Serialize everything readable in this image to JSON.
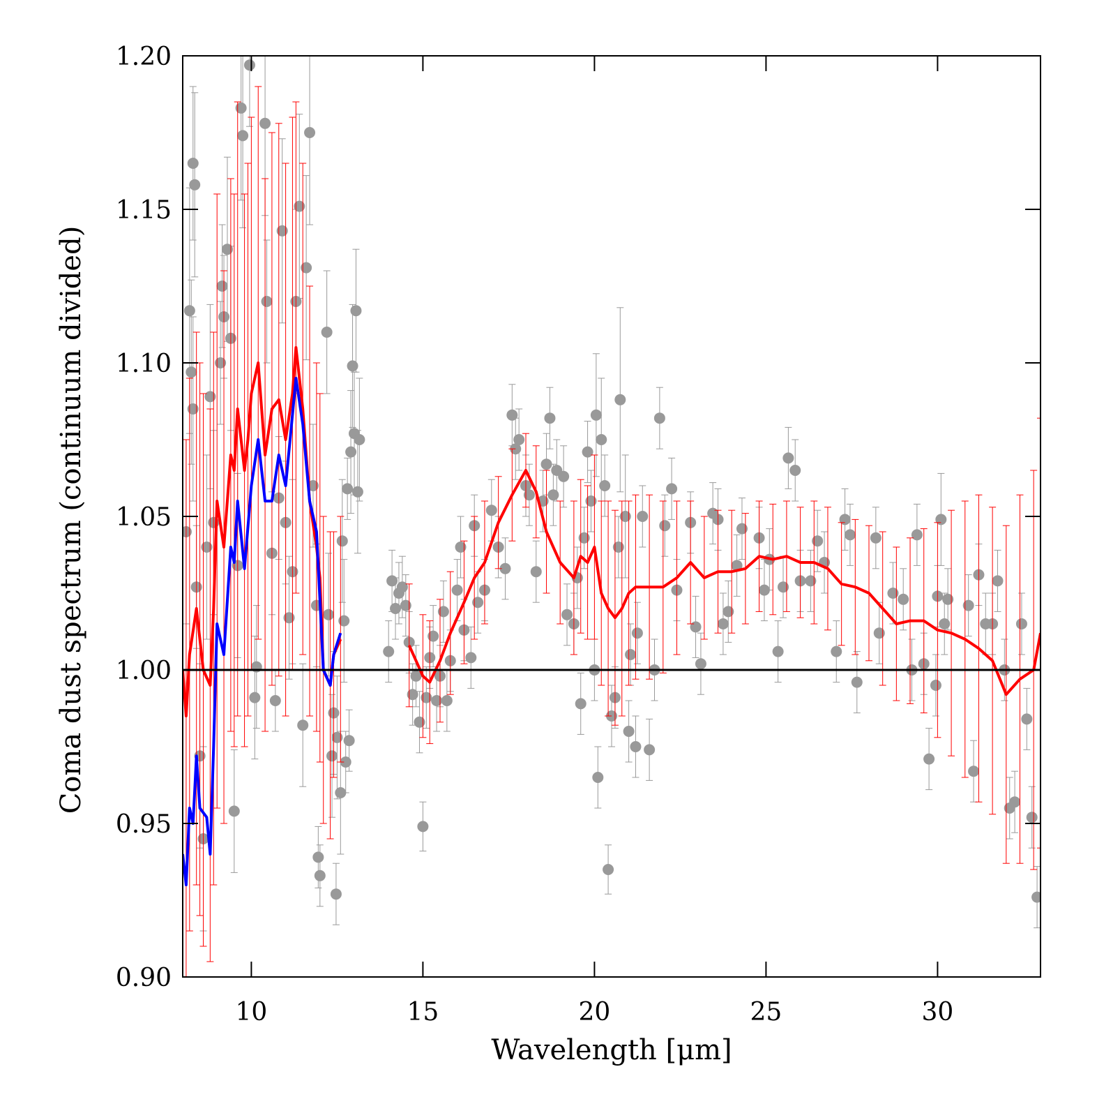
{
  "chart_data": {
    "type": "line",
    "xlabel": "Wavelength [μm]",
    "ylabel": "Coma dust spectrum (continuum divided)",
    "xlim": [
      8,
      33
    ],
    "ylim": [
      0.9,
      1.2
    ],
    "xticks": [
      10,
      15,
      20,
      25,
      30
    ],
    "yticks": [
      {
        "value": 0.9,
        "label": "0.90"
      },
      0.95,
      {
        "value": 1.0,
        "label": "1.00"
      },
      1.05,
      {
        "value": 1.1,
        "label": "1.10"
      },
      1.15,
      {
        "value": 1.2,
        "label": "1.20"
      }
    ],
    "hline": {
      "value": 1,
      "color": "#000000"
    },
    "series": [
      {
        "kind": "scatter",
        "color": "#999999",
        "x": [
          8.1,
          8.2,
          8.3,
          8.35,
          8.25,
          8.3,
          8.4,
          8.5,
          8.6,
          8.7,
          8.8,
          8.9,
          9.1,
          9.15,
          9.2,
          9.3,
          9.4,
          9.5,
          9.6,
          9.7,
          9.75,
          9.95,
          10.15,
          10.1,
          10.4,
          10.45,
          10.6,
          10.7,
          10.8,
          10.9,
          11.0,
          11.1,
          11.2,
          11.3,
          11.4,
          11.5,
          11.6,
          11.7,
          11.8,
          11.9,
          11.95,
          12.0,
          12.2,
          12.25,
          12.35,
          12.4,
          12.5,
          12.47,
          12.6,
          12.65,
          12.7,
          12.75,
          12.85,
          12.8,
          12.9,
          12.95,
          13.0,
          13.05,
          13.1,
          13.15,
          14.0,
          14.1,
          14.2,
          14.3,
          14.4,
          14.5,
          14.6,
          14.7,
          14.8,
          14.9,
          15.0,
          15.1,
          15.2,
          15.3,
          15.4,
          15.5,
          15.6,
          15.7,
          15.8,
          16.0,
          16.1,
          16.2,
          16.4,
          16.5,
          16.6,
          16.8,
          17.0,
          17.2,
          17.4,
          17.6,
          17.7,
          17.8,
          18.0,
          18.1,
          18.3,
          18.5,
          18.6,
          18.7,
          18.8,
          18.9,
          19.1,
          19.2,
          19.4,
          19.5,
          19.6,
          19.7,
          19.8,
          19.9,
          20.0,
          20.05,
          20.1,
          20.2,
          20.3,
          20.4,
          20.5,
          20.6,
          20.7,
          20.75,
          20.9,
          21.0,
          21.05,
          21.2,
          21.25,
          21.4,
          21.6,
          21.75,
          21.9,
          22.05,
          22.25,
          22.4,
          22.8,
          22.95,
          23.1,
          23.45,
          23.6,
          23.75,
          23.9,
          24.15,
          24.3,
          24.8,
          24.95,
          25.1,
          25.35,
          25.5,
          25.65,
          25.85,
          26.0,
          26.3,
          26.5,
          26.7,
          27.05,
          27.3,
          27.45,
          27.65,
          28.2,
          28.3,
          28.7,
          29.0,
          29.4,
          29.25,
          29.6,
          29.75,
          29.95,
          30.0,
          30.2,
          30.3,
          30.1,
          30.9,
          31.05,
          31.2,
          31.4,
          31.6,
          31.75,
          31.95,
          32.1,
          32.25,
          32.45,
          32.6,
          32.75,
          32.9
        ],
        "values": [
          1.045,
          1.117,
          1.165,
          1.158,
          1.097,
          1.085,
          1.027,
          0.972,
          0.945,
          1.04,
          1.089,
          1.048,
          1.1,
          1.125,
          1.115,
          1.137,
          1.108,
          0.954,
          1.034,
          1.183,
          1.174,
          1.197,
          1.001,
          0.991,
          1.178,
          1.12,
          1.038,
          0.99,
          1.056,
          1.143,
          1.048,
          1.017,
          1.032,
          1.12,
          1.151,
          0.982,
          1.131,
          1.175,
          1.06,
          1.021,
          0.939,
          0.933,
          1.11,
          1.018,
          0.972,
          0.986,
          0.978,
          0.927,
          0.96,
          1.042,
          1.016,
          0.97,
          0.977,
          1.059,
          1.071,
          1.099,
          1.077,
          1.117,
          1.058,
          1.075,
          1.006,
          1.029,
          1.02,
          1.025,
          1.027,
          1.021,
          1.009,
          0.992,
          0.998,
          0.983,
          0.949,
          0.991,
          1.004,
          1.011,
          0.99,
          0.998,
          1.019,
          0.99,
          1.003,
          1.026,
          1.04,
          1.013,
          1.004,
          1.047,
          1.022,
          1.026,
          1.052,
          1.04,
          1.033,
          1.083,
          1.072,
          1.075,
          1.06,
          1.057,
          1.032,
          1.055,
          1.067,
          1.082,
          1.057,
          1.065,
          1.063,
          1.018,
          1.015,
          1.03,
          0.989,
          1.043,
          1.071,
          1.055,
          1.0,
          1.083,
          0.965,
          1.075,
          1.06,
          0.935,
          0.985,
          0.991,
          1.04,
          1.088,
          1.05,
          0.98,
          1.005,
          0.975,
          1.012,
          1.05,
          0.974,
          1.0,
          1.082,
          1.047,
          1.059,
          1.026,
          1.048,
          1.014,
          1.002,
          1.051,
          1.049,
          1.015,
          1.019,
          1.034,
          1.046,
          1.043,
          1.026,
          1.036,
          1.006,
          1.027,
          1.069,
          1.065,
          1.029,
          1.029,
          1.042,
          1.035,
          1.006,
          1.049,
          1.044,
          0.996,
          1.043,
          1.012,
          1.025,
          1.023,
          1.044,
          1.0,
          1.002,
          0.971,
          0.995,
          1.024,
          1.015,
          1.023,
          1.049,
          1.021,
          0.967,
          1.031,
          1.015,
          1.015,
          1.029,
          1.0,
          0.955,
          0.957,
          1.015,
          0.984,
          0.952,
          0.926
        ],
        "errors": [
          0.03,
          0.04,
          0.025,
          0.03,
          0.03,
          0.03,
          0.02,
          0.03,
          0.03,
          0.03,
          0.03,
          0.03,
          0.02,
          0.02,
          0.02,
          0.03,
          0.03,
          0.02,
          0.03,
          0.03,
          0.03,
          0.02,
          0.02,
          0.02,
          0.03,
          0.02,
          0.02,
          0.01,
          0.02,
          0.03,
          0.02,
          0.02,
          0.03,
          0.03,
          0.03,
          0.02,
          0.03,
          0.03,
          0.02,
          0.02,
          0.01,
          0.01,
          0.02,
          0.02,
          0.02,
          0.02,
          0.02,
          0.01,
          0.02,
          0.02,
          0.02,
          0.01,
          0.01,
          0.01,
          0.02,
          0.02,
          0.02,
          0.02,
          0.02,
          0.02,
          0.01,
          0.01,
          0.01,
          0.01,
          0.01,
          0.01,
          0.01,
          0.01,
          0.01,
          0.01,
          0.008,
          0.01,
          0.01,
          0.01,
          0.01,
          0.01,
          0.01,
          0.01,
          0.01,
          0.01,
          0.01,
          0.01,
          0.01,
          0.01,
          0.01,
          0.01,
          0.01,
          0.01,
          0.01,
          0.01,
          0.01,
          0.01,
          0.01,
          0.01,
          0.01,
          0.01,
          0.01,
          0.01,
          0.01,
          0.01,
          0.01,
          0.01,
          0.01,
          0.01,
          0.01,
          0.01,
          0.01,
          0.01,
          0.01,
          0.02,
          0.01,
          0.02,
          0.01,
          0.008,
          0.01,
          0.01,
          0.01,
          0.03,
          0.02,
          0.01,
          0.01,
          0.01,
          0.01,
          0.01,
          0.01,
          0.01,
          0.01,
          0.01,
          0.01,
          0.01,
          0.01,
          0.01,
          0.01,
          0.01,
          0.01,
          0.01,
          0.01,
          0.01,
          0.01,
          0.01,
          0.01,
          0.01,
          0.01,
          0.01,
          0.01,
          0.01,
          0.01,
          0.01,
          0.01,
          0.01,
          0.01,
          0.01,
          0.01,
          0.01,
          0.01,
          0.01,
          0.01,
          0.01,
          0.01,
          0.01,
          0.01,
          0.01,
          0.01,
          0.01,
          0.01,
          0.01,
          0.015,
          0.01,
          0.01,
          0.01,
          0.01,
          0.01,
          0.01,
          0.01,
          0.01,
          0.01,
          0.01,
          0.01,
          0.01,
          0.01
        ]
      },
      {
        "kind": "line",
        "color": "#ff0000",
        "x": [
          8.0,
          8.1,
          8.2,
          8.4,
          8.5,
          8.6,
          8.8,
          8.9,
          9.0,
          9.2,
          9.4,
          9.5,
          9.6,
          9.8,
          9.9,
          10.0,
          10.2,
          10.4,
          10.6,
          10.8,
          11.0,
          11.2,
          11.3,
          11.5,
          11.7,
          11.9,
          12.0,
          12.1,
          12.3,
          12.4,
          12.6,
          null,
          14.6,
          15.0,
          15.2,
          15.5,
          15.8,
          16.2,
          16.5,
          16.8,
          17.2,
          17.6,
          18.0,
          18.3,
          18.6,
          19.0,
          19.4,
          19.6,
          19.8,
          20.0,
          20.2,
          20.4,
          20.6,
          20.8,
          21.0,
          21.2,
          21.6,
          22.0,
          22.4,
          22.8,
          23.2,
          23.6,
          24.0,
          24.4,
          24.8,
          25.2,
          25.6,
          26.0,
          26.4,
          26.8,
          27.2,
          27.6,
          28.0,
          28.4,
          28.8,
          29.2,
          29.6,
          30.0,
          30.4,
          30.8,
          31.2,
          31.6,
          32.0,
          32.4,
          32.8,
          33.0
        ],
        "values": [
          1.0,
          0.985,
          1.005,
          1.02,
          1.01,
          1.0,
          0.995,
          1.02,
          1.055,
          1.04,
          1.07,
          1.065,
          1.085,
          1.065,
          1.075,
          1.09,
          1.1,
          1.07,
          1.085,
          1.088,
          1.075,
          1.09,
          1.105,
          1.085,
          1.055,
          1.04,
          1.03,
          1.0,
          0.995,
          1.005,
          1.01,
          null,
          1.008,
          0.998,
          0.996,
          1.003,
          1.012,
          1.022,
          1.03,
          1.035,
          1.048,
          1.057,
          1.065,
          1.058,
          1.045,
          1.035,
          1.03,
          1.037,
          1.035,
          1.04,
          1.025,
          1.02,
          1.017,
          1.02,
          1.025,
          1.027,
          1.027,
          1.027,
          1.03,
          1.035,
          1.03,
          1.032,
          1.032,
          1.033,
          1.037,
          1.036,
          1.037,
          1.035,
          1.035,
          1.033,
          1.028,
          1.027,
          1.025,
          1.02,
          1.015,
          1.016,
          1.016,
          1.013,
          1.012,
          1.01,
          1.007,
          1.003,
          0.992,
          0.997,
          1.0,
          1.012
        ],
        "errors": [
          0.1,
          0.09,
          0.09,
          0.09,
          0.09,
          0.09,
          0.09,
          0.09,
          0.1,
          0.09,
          0.09,
          0.09,
          0.1,
          0.09,
          0.09,
          0.09,
          0.09,
          0.09,
          0.09,
          0.09,
          0.09,
          0.09,
          0.08,
          0.08,
          0.07,
          0.06,
          0.06,
          0.05,
          0.05,
          0.04,
          0.04,
          null,
          0.02,
          0.02,
          0.02,
          0.02,
          0.02,
          0.02,
          0.02,
          0.02,
          0.015,
          0.015,
          0.012,
          0.015,
          0.02,
          0.02,
          0.025,
          0.025,
          0.025,
          0.03,
          0.03,
          0.035,
          0.035,
          0.035,
          0.03,
          0.03,
          0.03,
          0.028,
          0.025,
          0.02,
          0.02,
          0.02,
          0.02,
          0.018,
          0.018,
          0.018,
          0.018,
          0.018,
          0.02,
          0.02,
          0.02,
          0.022,
          0.022,
          0.025,
          0.025,
          0.027,
          0.03,
          0.035,
          0.04,
          0.045,
          0.05,
          0.05,
          0.055,
          0.06,
          0.065,
          0.07
        ]
      },
      {
        "kind": "line",
        "color": "#0000ff",
        "x": [
          8.0,
          8.1,
          8.2,
          8.3,
          8.4,
          8.5,
          8.7,
          8.8,
          8.9,
          9.0,
          9.2,
          9.4,
          9.5,
          9.6,
          9.8,
          10.0,
          10.2,
          10.4,
          10.6,
          10.8,
          11.0,
          11.3,
          11.5,
          11.7,
          11.9,
          12.1,
          12.3,
          12.4,
          12.6
        ],
        "values": [
          0.94,
          0.93,
          0.955,
          0.95,
          0.972,
          0.955,
          0.952,
          0.94,
          0.975,
          1.015,
          1.005,
          1.04,
          1.035,
          1.055,
          1.033,
          1.06,
          1.075,
          1.055,
          1.055,
          1.07,
          1.06,
          1.095,
          1.08,
          1.055,
          1.045,
          1.0,
          0.995,
          1.005,
          1.012
        ]
      }
    ]
  }
}
